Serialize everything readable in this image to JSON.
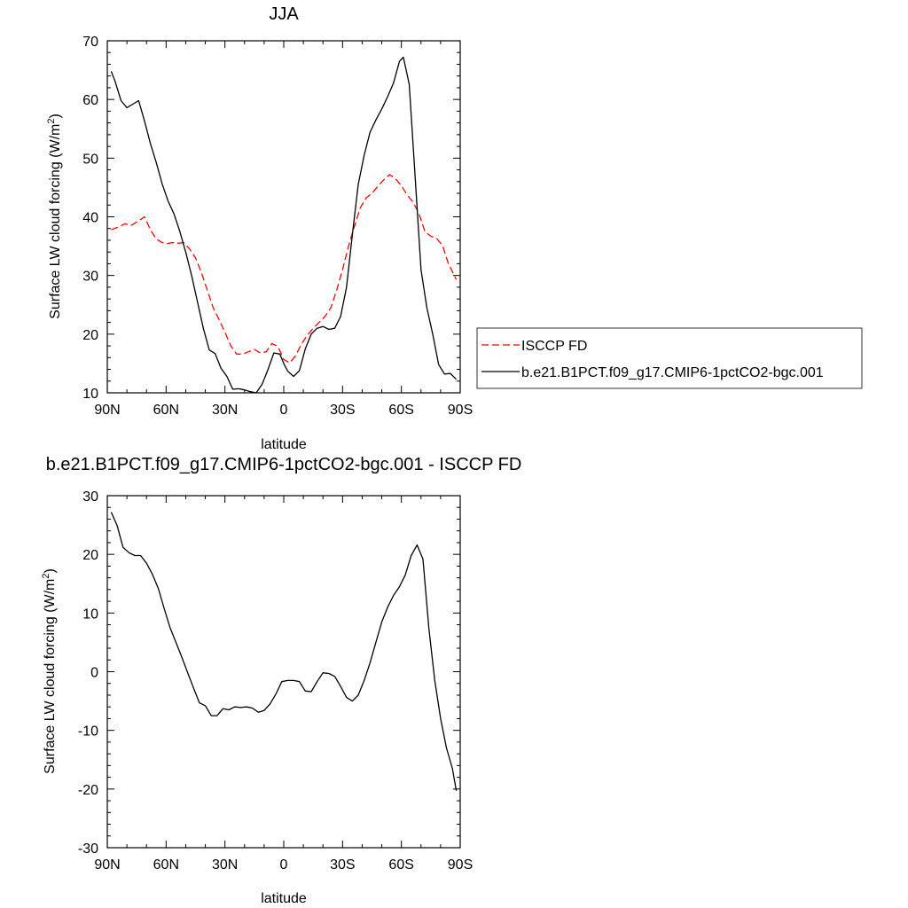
{
  "chart_data": [
    {
      "type": "line",
      "title": "JJA",
      "xlabel": "latitude",
      "ylabel_main": "Surface LW cloud forcing (W/m",
      "ylabel_sup": "2",
      "ylabel_tail": ")",
      "xlim": [
        90,
        -90
      ],
      "ylim": [
        10,
        70
      ],
      "yticks": [
        10,
        20,
        30,
        40,
        50,
        60,
        70
      ],
      "xticks": [
        90,
        60,
        30,
        0,
        -30,
        -60,
        -90
      ],
      "xtick_labels": [
        "90N",
        "60N",
        "30N",
        "0",
        "30S",
        "60S",
        "90S"
      ],
      "legend_position": "right",
      "series": [
        {
          "name": "ISCCP FD",
          "color": "#ff0000",
          "dash": "dashed",
          "x": [
            88,
            84,
            81,
            78,
            74,
            71,
            68,
            65,
            62,
            60,
            57,
            54,
            51,
            48,
            45,
            42,
            39,
            36,
            33,
            30,
            27,
            24,
            21,
            18,
            15,
            12,
            9,
            6,
            3,
            0,
            -3,
            -6,
            -9,
            -12,
            -15,
            -18,
            -21,
            -24,
            -27,
            -30,
            -33,
            -36,
            -39,
            -42,
            -45,
            -48,
            -51,
            -54,
            -57,
            -60,
            -63,
            -66,
            -69,
            -72,
            -75,
            -78,
            -81,
            -84,
            -88
          ],
          "y": [
            37.8,
            38.3,
            38.8,
            38.5,
            39.3,
            40.0,
            37.8,
            36.2,
            35.6,
            35.4,
            35.6,
            35.5,
            35.6,
            34.5,
            33.0,
            30.5,
            27.5,
            24.5,
            22.5,
            20.3,
            18.0,
            16.6,
            16.6,
            17.0,
            17.4,
            16.8,
            17.0,
            18.4,
            17.9,
            15.7,
            15.1,
            16.3,
            18.3,
            19.8,
            21.0,
            22.0,
            23.0,
            24.5,
            27.5,
            31.0,
            35.0,
            38.3,
            41.5,
            43.2,
            44.0,
            45.2,
            46.3,
            47.2,
            46.5,
            45.3,
            43.7,
            42.5,
            40.5,
            37.5,
            36.7,
            36.3,
            35.1,
            32.0,
            29.3
          ]
        },
        {
          "name": "b.e21.B1PCT.f09_g17.CMIP6-1pctCO2-bgc.001",
          "color": "#000000",
          "dash": "solid",
          "x": [
            88,
            86,
            83,
            80,
            77,
            74,
            71,
            68,
            65,
            62,
            59,
            56,
            53,
            50,
            47,
            44,
            41,
            38,
            35,
            32,
            29,
            26,
            23,
            20,
            17,
            14,
            11,
            8,
            5,
            2,
            0,
            -2,
            -5,
            -8,
            -11,
            -14,
            -17,
            -20,
            -23,
            -26,
            -29,
            -32,
            -35,
            -38,
            -41,
            -44,
            -47,
            -50,
            -53,
            -56,
            -59,
            -61,
            -64,
            -67,
            -70,
            -73,
            -76,
            -79,
            -82,
            -85,
            -88
          ],
          "y": [
            64.8,
            63.1,
            59.8,
            58.6,
            59.2,
            59.8,
            56.3,
            52.5,
            49.2,
            45.6,
            42.7,
            40.5,
            37.5,
            34.0,
            30.0,
            25.5,
            21.0,
            17.3,
            16.7,
            14.2,
            12.8,
            10.6,
            10.7,
            10.5,
            10.2,
            10.0,
            11.5,
            14.0,
            16.8,
            16.6,
            15.0,
            13.7,
            12.8,
            13.8,
            17.5,
            20.0,
            21.0,
            21.3,
            20.8,
            21.0,
            23.0,
            28.0,
            37.0,
            45.5,
            50.5,
            54.4,
            56.5,
            58.4,
            60.5,
            62.8,
            66.5,
            67.2,
            62.6,
            47.0,
            31.0,
            24.5,
            20.0,
            14.8,
            13.2,
            13.3,
            12.3
          ]
        }
      ]
    },
    {
      "type": "line",
      "title": "b.e21.B1PCT.f09_g17.CMIP6-1pctCO2-bgc.001 - ISCCP FD",
      "xlabel": "latitude",
      "ylabel_main": "Surface LW cloud forcing (W/m",
      "ylabel_sup": "2",
      "ylabel_tail": ")",
      "xlim": [
        90,
        -90
      ],
      "ylim": [
        -30,
        30
      ],
      "yticks": [
        -30,
        -20,
        -10,
        0,
        10,
        20,
        30
      ],
      "ytick_labels": [
        "-30",
        "-20",
        "-10",
        "0",
        "10",
        "20",
        "30"
      ],
      "xticks": [
        90,
        60,
        30,
        0,
        -30,
        -60,
        -90
      ],
      "xtick_labels": [
        "90N",
        "60N",
        "30N",
        "0",
        "30S",
        "60S",
        "90S"
      ],
      "series": [
        {
          "color": "#000000",
          "dash": "solid",
          "x": [
            88,
            85,
            82,
            79,
            76,
            73,
            70,
            67,
            64,
            61,
            58,
            55,
            52,
            49,
            46,
            43,
            40,
            37,
            34,
            31,
            28,
            25,
            22,
            19,
            16,
            13,
            10,
            7,
            4,
            1,
            -2,
            -5,
            -8,
            -11,
            -14,
            -17,
            -20,
            -23,
            -26,
            -29,
            -32,
            -35,
            -38,
            -41,
            -44,
            -47,
            -50,
            -53,
            -56,
            -59,
            -62,
            -65,
            -68,
            -71,
            -74,
            -77,
            -80,
            -83,
            -86,
            -88
          ],
          "y": [
            27.2,
            24.9,
            21.2,
            20.3,
            19.8,
            19.8,
            18.5,
            16.6,
            14.2,
            10.8,
            7.5,
            5.0,
            2.5,
            -0.2,
            -2.8,
            -5.3,
            -5.8,
            -7.5,
            -7.5,
            -6.3,
            -6.5,
            -6.0,
            -6.1,
            -6.0,
            -6.2,
            -6.9,
            -6.6,
            -5.5,
            -3.8,
            -1.7,
            -1.5,
            -1.5,
            -1.7,
            -3.3,
            -3.4,
            -1.7,
            -0.2,
            -0.3,
            -0.8,
            -2.5,
            -4.4,
            -5.0,
            -4.0,
            -1.5,
            1.5,
            5.0,
            8.5,
            11.0,
            13.0,
            14.5,
            16.5,
            19.8,
            21.6,
            19.2,
            7.5,
            -1.5,
            -8.0,
            -13.0,
            -16.5,
            -20.3
          ]
        }
      ]
    }
  ]
}
